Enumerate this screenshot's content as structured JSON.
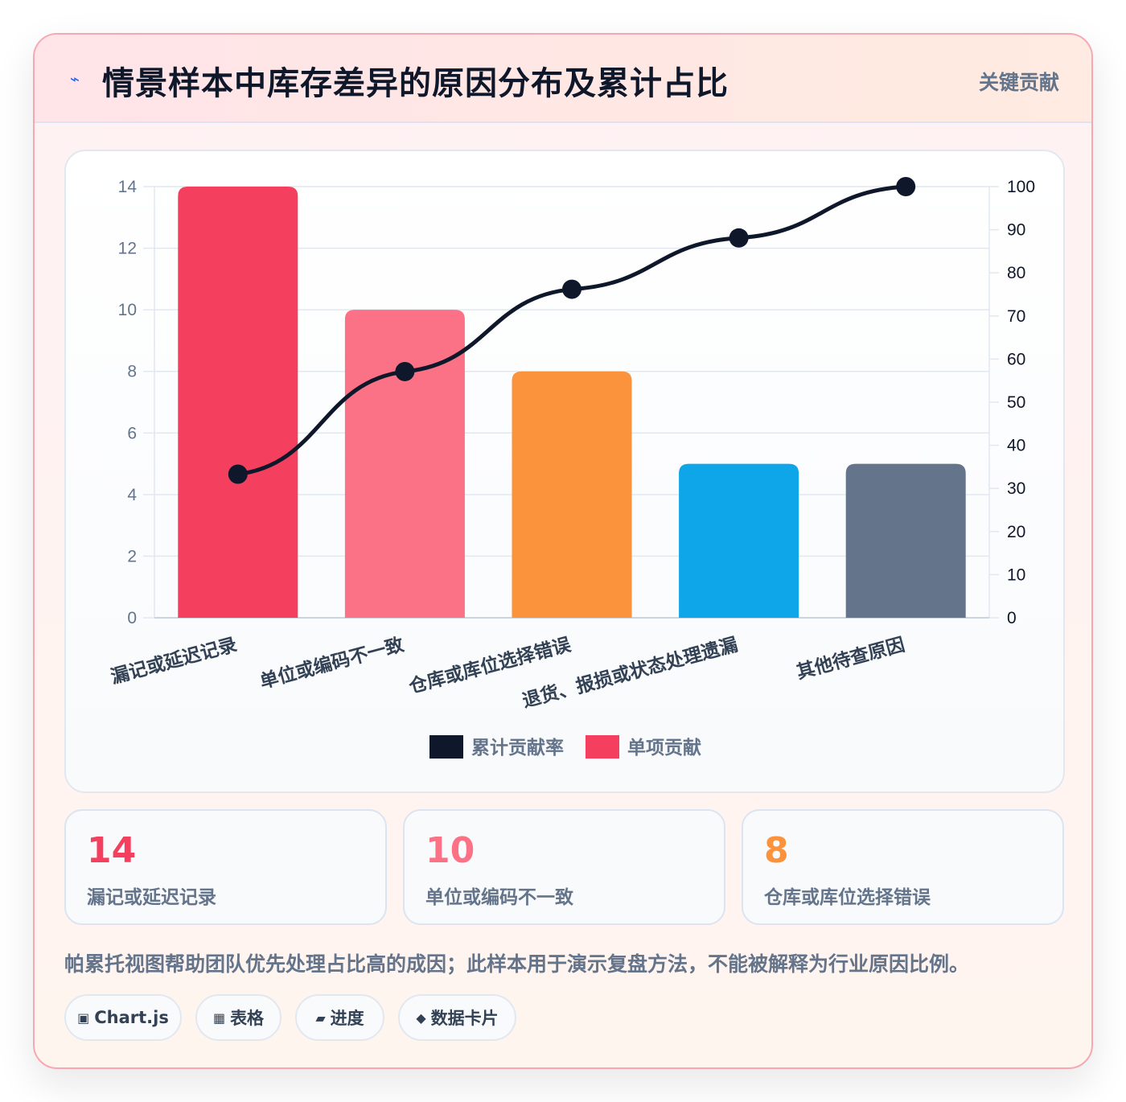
{
  "header": {
    "icon": "lightning-icon",
    "title": "情景样本中库存差异的原因分布及累计占比",
    "tag": "关键贡献"
  },
  "chart_data": {
    "type": "bar",
    "title": "",
    "categories": [
      "漏记或延迟记录",
      "单位或编码不一致",
      "仓库或库位选择错误",
      "退货、报损或状态处理遗漏",
      "其他待查原因"
    ],
    "series": [
      {
        "name": "单项贡献",
        "type": "bar",
        "axis": "left",
        "values": [
          14,
          10,
          8,
          5,
          5
        ],
        "colors": [
          "#f43f5e",
          "#fb7185",
          "#fb923c",
          "#0ea5e9",
          "#64748b"
        ],
        "legend_color": "#f43f5e"
      },
      {
        "name": "累计贡献率",
        "type": "line",
        "axis": "right",
        "values": [
          33.3,
          57.1,
          76.2,
          88.1,
          100
        ],
        "color": "#0f172a"
      }
    ],
    "y_left": {
      "lim": [
        0,
        14
      ],
      "ticks": [
        "0",
        "2",
        "4",
        "6",
        "8",
        "10",
        "12",
        "14"
      ]
    },
    "y_right": {
      "lim": [
        0,
        100
      ],
      "ticks": [
        "0",
        "10",
        "20",
        "30",
        "40",
        "50",
        "60",
        "70",
        "80",
        "90",
        "100"
      ]
    },
    "xlabel": "",
    "ylabel": "",
    "grid": true,
    "legend": {
      "position": "bottom",
      "order": [
        "累计贡献率",
        "单项贡献"
      ]
    }
  },
  "stats": [
    {
      "value": "14",
      "label": "漏记或延迟记录",
      "color": "#f43f5e"
    },
    {
      "value": "10",
      "label": "单位或编码不一致",
      "color": "#fb7185"
    },
    {
      "value": "8",
      "label": "仓库或库位选择错误",
      "color": "#fb923c"
    }
  ],
  "note": "帕累托视图帮助团队优先处理占比高的成因；此样本用于演示复盘方法，不能被解释为行业原因比例。",
  "chips": [
    {
      "icon": "▣",
      "icon_name": "chart-icon",
      "label": "Chart.js"
    },
    {
      "icon": "▦",
      "icon_name": "table-icon",
      "label": "表格"
    },
    {
      "icon": "▰",
      "icon_name": "progress-icon",
      "label": "进度"
    },
    {
      "icon": "◆",
      "icon_name": "card-icon",
      "label": "数据卡片"
    }
  ]
}
